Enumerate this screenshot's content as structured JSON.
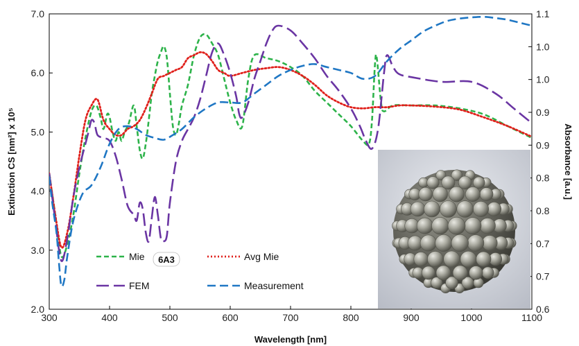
{
  "chart_data": {
    "type": "line",
    "xlabel": "Wavelength [nm]",
    "ylabel_left": "Extinction CS [nm²] x 10⁵",
    "ylabel_right": "Absorbance [a.u.]",
    "xlim": [
      300,
      1100
    ],
    "ylim_left": [
      2.0,
      7.0
    ],
    "ylim_right": [
      0.6,
      1.1
    ],
    "x_ticks": [
      "300",
      "400",
      "500",
      "600",
      "700",
      "800",
      "900",
      "1000",
      "1100"
    ],
    "y_ticks_left": [
      "2.0",
      "3.0",
      "4.0",
      "5.0",
      "6.0",
      "7.0"
    ],
    "y_ticks_right": [
      "0.6",
      "0.7",
      "0.7",
      "0.8",
      "0.8",
      "0.9",
      "0.9",
      "1.0",
      "1.0",
      "1.1"
    ],
    "inset_badge": "6A3",
    "legend": [
      {
        "label": "Mie",
        "series": 0
      },
      {
        "label": "Avg Mie",
        "series": 1
      },
      {
        "label": "FEM",
        "series": 2
      },
      {
        "label": "Measurement",
        "series": 3
      }
    ],
    "series": [
      {
        "name": "Mie",
        "axis": "left",
        "color": "#2db34a",
        "dash": "7,4",
        "width": 2.6,
        "points": [
          [
            300,
            4.3
          ],
          [
            310,
            3.6
          ],
          [
            320,
            2.9
          ],
          [
            330,
            3.1
          ],
          [
            340,
            3.6
          ],
          [
            350,
            4.3
          ],
          [
            360,
            4.9
          ],
          [
            370,
            5.35
          ],
          [
            378,
            5.45
          ],
          [
            385,
            5.25
          ],
          [
            390,
            5.05
          ],
          [
            396,
            5.3
          ],
          [
            400,
            5.25
          ],
          [
            405,
            5.0
          ],
          [
            410,
            4.85
          ],
          [
            415,
            5.0
          ],
          [
            420,
            4.85
          ],
          [
            425,
            5.0
          ],
          [
            432,
            5.15
          ],
          [
            440,
            5.45
          ],
          [
            445,
            5.1
          ],
          [
            450,
            4.7
          ],
          [
            455,
            4.55
          ],
          [
            460,
            4.8
          ],
          [
            465,
            5.2
          ],
          [
            470,
            5.65
          ],
          [
            475,
            5.95
          ],
          [
            480,
            6.2
          ],
          [
            485,
            6.35
          ],
          [
            490,
            6.45
          ],
          [
            495,
            6.25
          ],
          [
            500,
            5.65
          ],
          [
            505,
            5.1
          ],
          [
            510,
            4.95
          ],
          [
            515,
            5.15
          ],
          [
            520,
            5.45
          ],
          [
            530,
            5.8
          ],
          [
            540,
            6.3
          ],
          [
            550,
            6.6
          ],
          [
            560,
            6.65
          ],
          [
            570,
            6.5
          ],
          [
            580,
            6.3
          ],
          [
            590,
            5.9
          ],
          [
            600,
            5.5
          ],
          [
            610,
            5.2
          ],
          [
            620,
            5.1
          ],
          [
            630,
            5.9
          ],
          [
            640,
            6.3
          ],
          [
            660,
            6.25
          ],
          [
            680,
            6.2
          ],
          [
            700,
            6.1
          ],
          [
            720,
            5.95
          ],
          [
            740,
            5.7
          ],
          [
            760,
            5.5
          ],
          [
            780,
            5.3
          ],
          [
            800,
            5.1
          ],
          [
            820,
            4.85
          ],
          [
            830,
            4.8
          ],
          [
            835,
            5.2
          ],
          [
            840,
            6.15
          ],
          [
            843,
            6.25
          ],
          [
            850,
            5.5
          ],
          [
            855,
            5.35
          ],
          [
            870,
            5.45
          ],
          [
            900,
            5.45
          ],
          [
            940,
            5.45
          ],
          [
            980,
            5.4
          ],
          [
            1020,
            5.3
          ],
          [
            1060,
            5.1
          ],
          [
            1100,
            4.9
          ]
        ]
      },
      {
        "name": "Avg Mie",
        "axis": "left",
        "color": "#e0201b",
        "dash": "2,3",
        "width": 2.8,
        "points": [
          [
            300,
            4.3
          ],
          [
            310,
            3.6
          ],
          [
            320,
            3.05
          ],
          [
            330,
            3.3
          ],
          [
            340,
            3.9
          ],
          [
            350,
            4.6
          ],
          [
            360,
            5.2
          ],
          [
            370,
            5.45
          ],
          [
            380,
            5.55
          ],
          [
            390,
            5.2
          ],
          [
            400,
            5.05
          ],
          [
            410,
            4.95
          ],
          [
            420,
            4.95
          ],
          [
            430,
            5.05
          ],
          [
            440,
            5.1
          ],
          [
            450,
            5.2
          ],
          [
            460,
            5.4
          ],
          [
            470,
            5.65
          ],
          [
            480,
            5.9
          ],
          [
            490,
            5.95
          ],
          [
            500,
            6.0
          ],
          [
            510,
            6.05
          ],
          [
            520,
            6.1
          ],
          [
            530,
            6.25
          ],
          [
            540,
            6.3
          ],
          [
            550,
            6.35
          ],
          [
            560,
            6.32
          ],
          [
            570,
            6.2
          ],
          [
            580,
            6.05
          ],
          [
            590,
            6.0
          ],
          [
            600,
            5.95
          ],
          [
            620,
            6.0
          ],
          [
            640,
            6.05
          ],
          [
            660,
            6.08
          ],
          [
            680,
            6.1
          ],
          [
            700,
            6.05
          ],
          [
            720,
            5.95
          ],
          [
            740,
            5.8
          ],
          [
            760,
            5.62
          ],
          [
            780,
            5.5
          ],
          [
            800,
            5.42
          ],
          [
            820,
            5.4
          ],
          [
            840,
            5.42
          ],
          [
            860,
            5.42
          ],
          [
            880,
            5.45
          ],
          [
            900,
            5.45
          ],
          [
            940,
            5.43
          ],
          [
            980,
            5.38
          ],
          [
            1020,
            5.25
          ],
          [
            1060,
            5.1
          ],
          [
            1100,
            4.92
          ]
        ]
      },
      {
        "name": "FEM",
        "axis": "left",
        "color": "#6a35a3",
        "dash": "18,7",
        "width": 2.6,
        "points": [
          [
            300,
            4.3
          ],
          [
            310,
            3.5
          ],
          [
            320,
            2.82
          ],
          [
            330,
            3.2
          ],
          [
            340,
            3.9
          ],
          [
            350,
            4.4
          ],
          [
            360,
            4.8
          ],
          [
            365,
            5.0
          ],
          [
            370,
            5.2
          ],
          [
            375,
            5.15
          ],
          [
            380,
            4.95
          ],
          [
            390,
            4.9
          ],
          [
            400,
            4.85
          ],
          [
            410,
            4.6
          ],
          [
            420,
            4.2
          ],
          [
            430,
            3.75
          ],
          [
            440,
            3.6
          ],
          [
            445,
            3.5
          ],
          [
            450,
            3.8
          ],
          [
            455,
            3.7
          ],
          [
            460,
            3.3
          ],
          [
            465,
            3.15
          ],
          [
            470,
            3.55
          ],
          [
            475,
            3.9
          ],
          [
            480,
            3.6
          ],
          [
            485,
            3.2
          ],
          [
            490,
            3.15
          ],
          [
            495,
            3.25
          ],
          [
            500,
            3.8
          ],
          [
            510,
            4.5
          ],
          [
            520,
            4.85
          ],
          [
            530,
            5.05
          ],
          [
            540,
            5.25
          ],
          [
            550,
            5.55
          ],
          [
            560,
            5.95
          ],
          [
            570,
            6.35
          ],
          [
            580,
            6.5
          ],
          [
            590,
            6.3
          ],
          [
            600,
            6.0
          ],
          [
            610,
            5.6
          ],
          [
            615,
            5.3
          ],
          [
            620,
            5.25
          ],
          [
            630,
            5.5
          ],
          [
            640,
            5.9
          ],
          [
            650,
            6.2
          ],
          [
            660,
            6.5
          ],
          [
            670,
            6.72
          ],
          [
            680,
            6.8
          ],
          [
            700,
            6.72
          ],
          [
            720,
            6.5
          ],
          [
            740,
            6.25
          ],
          [
            760,
            5.95
          ],
          [
            780,
            5.7
          ],
          [
            800,
            5.4
          ],
          [
            815,
            5.1
          ],
          [
            825,
            4.85
          ],
          [
            835,
            4.72
          ],
          [
            845,
            5.05
          ],
          [
            855,
            6.0
          ],
          [
            860,
            6.3
          ],
          [
            870,
            6.1
          ],
          [
            880,
            5.98
          ],
          [
            900,
            5.93
          ],
          [
            950,
            5.85
          ],
          [
            1000,
            5.85
          ],
          [
            1040,
            5.65
          ],
          [
            1070,
            5.4
          ],
          [
            1100,
            5.15
          ]
        ]
      },
      {
        "name": "Measurement",
        "axis": "left",
        "color": "#1f77c4",
        "dash": "12,6",
        "width": 2.6,
        "points": [
          [
            300,
            4.25
          ],
          [
            305,
            3.8
          ],
          [
            312,
            3.3
          ],
          [
            316,
            2.8
          ],
          [
            320,
            2.4
          ],
          [
            325,
            2.5
          ],
          [
            330,
            2.9
          ],
          [
            340,
            3.5
          ],
          [
            355,
            3.95
          ],
          [
            370,
            4.1
          ],
          [
            385,
            4.4
          ],
          [
            400,
            4.8
          ],
          [
            415,
            5.05
          ],
          [
            430,
            5.1
          ],
          [
            445,
            5.05
          ],
          [
            460,
            4.95
          ],
          [
            475,
            4.9
          ],
          [
            490,
            4.87
          ],
          [
            505,
            4.95
          ],
          [
            520,
            5.05
          ],
          [
            540,
            5.25
          ],
          [
            560,
            5.4
          ],
          [
            580,
            5.5
          ],
          [
            600,
            5.5
          ],
          [
            620,
            5.5
          ],
          [
            640,
            5.65
          ],
          [
            660,
            5.8
          ],
          [
            680,
            5.95
          ],
          [
            700,
            6.05
          ],
          [
            720,
            6.12
          ],
          [
            740,
            6.15
          ],
          [
            760,
            6.1
          ],
          [
            780,
            6.05
          ],
          [
            800,
            6.0
          ],
          [
            820,
            5.9
          ],
          [
            840,
            5.95
          ],
          [
            860,
            6.2
          ],
          [
            880,
            6.4
          ],
          [
            900,
            6.55
          ],
          [
            920,
            6.7
          ],
          [
            940,
            6.8
          ],
          [
            960,
            6.88
          ],
          [
            980,
            6.92
          ],
          [
            1000,
            6.94
          ],
          [
            1020,
            6.95
          ],
          [
            1040,
            6.93
          ],
          [
            1060,
            6.9
          ],
          [
            1080,
            6.85
          ],
          [
            1100,
            6.8
          ]
        ]
      }
    ]
  }
}
